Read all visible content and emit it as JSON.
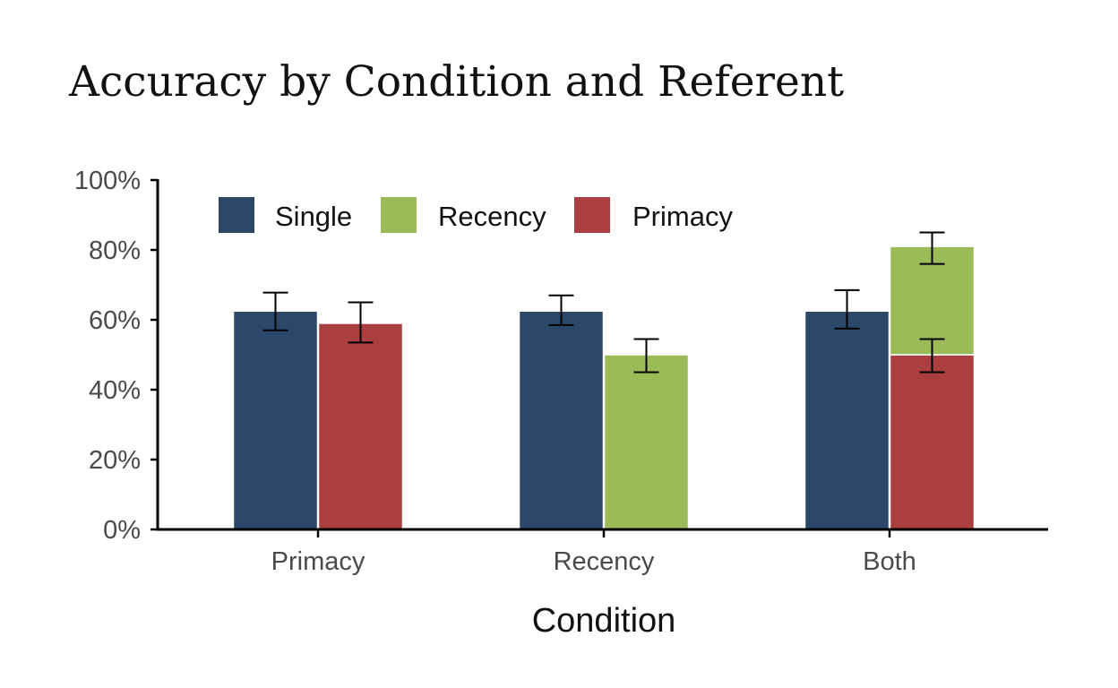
{
  "chart_data": {
    "type": "bar",
    "title": "Accuracy by Condition and Referent",
    "xlabel": "Condition",
    "ylabel": "",
    "categories": [
      "Primacy",
      "Recency",
      "Both"
    ],
    "ylim": [
      0,
      100
    ],
    "yticks": [
      0,
      20,
      40,
      60,
      80,
      100
    ],
    "ytick_labels": [
      "0%",
      "20%",
      "40%",
      "60%",
      "80%",
      "100%"
    ],
    "grid": false,
    "legend_position": "top-left",
    "series": [
      {
        "name": "Single",
        "color": "#2b476a"
      },
      {
        "name": "Recency",
        "color": "#9bbb59"
      },
      {
        "name": "Primacy",
        "color": "#ab3e3e"
      }
    ],
    "bars": [
      {
        "category": "Primacy",
        "series": "Single",
        "value": 62.5,
        "err_low": 57.0,
        "err_high": 67.8,
        "slot": 0
      },
      {
        "category": "Primacy",
        "series": "Primacy",
        "value": 59.0,
        "err_low": 53.5,
        "err_high": 65.0,
        "slot": 1
      },
      {
        "category": "Recency",
        "series": "Single",
        "value": 62.5,
        "err_low": 58.5,
        "err_high": 67.0,
        "slot": 0
      },
      {
        "category": "Recency",
        "series": "Recency",
        "value": 50.0,
        "err_low": 45.0,
        "err_high": 54.5,
        "slot": 1
      },
      {
        "category": "Both",
        "series": "Single",
        "value": 62.5,
        "err_low": 57.5,
        "err_high": 68.5,
        "slot": 0
      },
      {
        "category": "Both",
        "series": "Primacy",
        "value": 50.0,
        "err_low": 45.0,
        "err_high": 54.5,
        "slot": 1
      },
      {
        "category": "Both",
        "series": "Recency",
        "value": 81.0,
        "err_low": 76.0,
        "err_high": 85.0,
        "slot": 1,
        "stacked_on": "Primacy"
      }
    ]
  }
}
